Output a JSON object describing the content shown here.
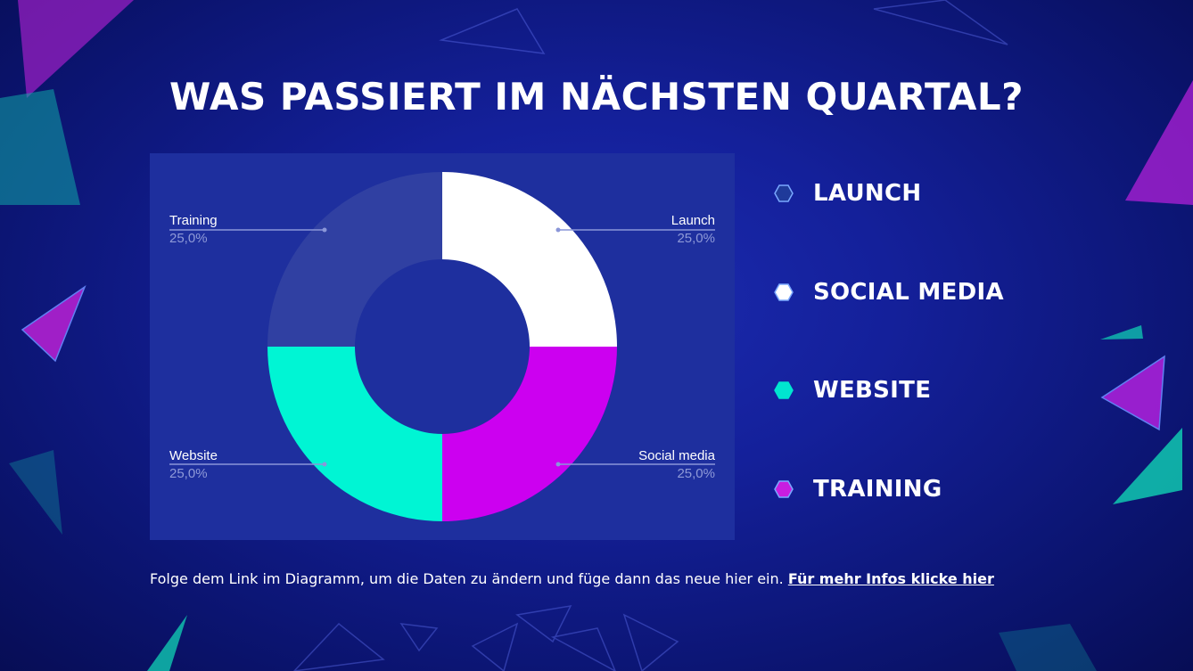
{
  "slide": {
    "title": "WAS PASSIERT IM NÄCHSTEN QUARTAL?",
    "footer_text": "Folge dem Link im Diagramm, um die Daten zu ändern und füge dann das neue hier ein.",
    "footer_link": "Für mehr Infos klicke hier"
  },
  "legend": {
    "items": [
      {
        "label": "LAUNCH",
        "icon": "hexagon-icon",
        "color": "#1f3a9a"
      },
      {
        "label": "SOCIAL MEDIA",
        "icon": "hexagon-icon",
        "color": "#ffffff"
      },
      {
        "label": "WEBSITE",
        "icon": "hexagon-icon",
        "color": "#00e5d0"
      },
      {
        "label": "TRAINING",
        "icon": "hexagon-icon",
        "color": "#c81ee0"
      }
    ]
  },
  "colors": {
    "background": "#14209a",
    "panel": "#1e2f9e",
    "accent_teal": "#00f5d4",
    "accent_magenta": "#cc00f0"
  },
  "chart_data": {
    "type": "pie",
    "subtype": "donut",
    "start": "top",
    "direction": "clockwise",
    "categories": [
      "Launch",
      "Social media",
      "Website",
      "Training"
    ],
    "values": [
      25.0,
      25.0,
      25.0,
      25.0
    ],
    "value_labels": [
      "25,0%",
      "25,0%",
      "25,0%",
      "25,0%"
    ],
    "colors": [
      "#ffffff",
      "#cc00f0",
      "#00f5d4",
      "#3040a2"
    ],
    "label_positions": [
      "top-right",
      "bottom-right",
      "bottom-left",
      "top-left"
    ],
    "title": "",
    "legend": "none"
  }
}
